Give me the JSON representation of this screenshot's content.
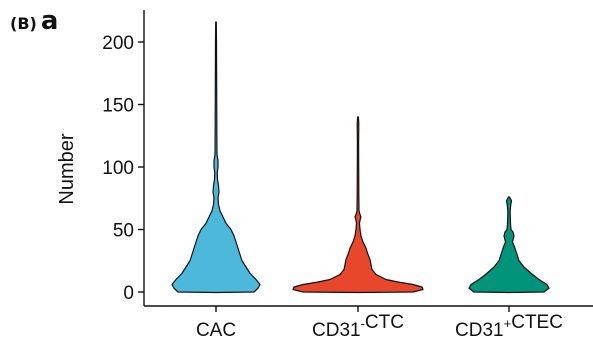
{
  "panel_label": {
    "paren": "(B)",
    "letter": "a"
  },
  "chart_data": {
    "type": "violin",
    "xlabel": "",
    "ylabel": "Number",
    "ylim": [
      -6,
      220
    ],
    "yticks": [
      0,
      50,
      100,
      150,
      200
    ],
    "grid": false,
    "legend": "none",
    "series": [
      {
        "category": "CAC",
        "label_parts": [
          {
            "text": "CAC",
            "sup": ""
          }
        ],
        "color": "#4CB9DC",
        "min": 0,
        "max": 216,
        "profile": [
          [
            0,
            38
          ],
          [
            3,
            42
          ],
          [
            6,
            44
          ],
          [
            10,
            40
          ],
          [
            15,
            34
          ],
          [
            20,
            30
          ],
          [
            25,
            26
          ],
          [
            30,
            24
          ],
          [
            35,
            22
          ],
          [
            40,
            20
          ],
          [
            45,
            18
          ],
          [
            50,
            15
          ],
          [
            55,
            10
          ],
          [
            60,
            7
          ],
          [
            65,
            4
          ],
          [
            70,
            2.5
          ],
          [
            75,
            2
          ],
          [
            80,
            3
          ],
          [
            85,
            2.5
          ],
          [
            90,
            1.5
          ],
          [
            95,
            1.2
          ],
          [
            100,
            2
          ],
          [
            105,
            2
          ],
          [
            110,
            1
          ],
          [
            120,
            0.9
          ],
          [
            140,
            0.8
          ],
          [
            160,
            0.7
          ],
          [
            180,
            0.6
          ],
          [
            200,
            0.5
          ],
          [
            216,
            0.3
          ]
        ]
      },
      {
        "category": "CD31-CTC",
        "label_parts": [
          {
            "text": "CD31",
            "sup": "-"
          },
          {
            "text": "CTC",
            "sup": ""
          }
        ],
        "color": "#E8472B",
        "min": 0,
        "max": 140,
        "profile": [
          [
            0,
            55
          ],
          [
            2,
            65
          ],
          [
            4,
            64
          ],
          [
            6,
            55
          ],
          [
            8,
            40
          ],
          [
            10,
            28
          ],
          [
            14,
            18
          ],
          [
            18,
            14
          ],
          [
            22,
            13
          ],
          [
            26,
            12
          ],
          [
            30,
            10
          ],
          [
            35,
            8
          ],
          [
            40,
            5
          ],
          [
            45,
            3
          ],
          [
            50,
            2
          ],
          [
            55,
            1.5
          ],
          [
            58,
            2.2
          ],
          [
            60,
            3
          ],
          [
            62,
            2
          ],
          [
            65,
            1
          ],
          [
            80,
            0.8
          ],
          [
            100,
            0.7
          ],
          [
            120,
            0.6
          ],
          [
            135,
            0.8
          ],
          [
            140,
            0.4
          ]
        ]
      },
      {
        "category": "CD31+CTEC",
        "label_parts": [
          {
            "text": "CD31",
            "sup": "+"
          },
          {
            "text": "CTEC",
            "sup": ""
          }
        ],
        "color": "#00957A",
        "min": 0,
        "max": 76,
        "profile": [
          [
            0,
            35
          ],
          [
            3,
            40
          ],
          [
            6,
            38
          ],
          [
            10,
            30
          ],
          [
            15,
            22
          ],
          [
            20,
            15
          ],
          [
            25,
            10
          ],
          [
            30,
            8
          ],
          [
            35,
            6
          ],
          [
            40,
            3.5
          ],
          [
            45,
            5
          ],
          [
            48,
            4
          ],
          [
            50,
            2
          ],
          [
            55,
            1.5
          ],
          [
            60,
            1.3
          ],
          [
            65,
            1.2
          ],
          [
            70,
            1.8
          ],
          [
            73,
            2.5
          ],
          [
            76,
            0.6
          ]
        ]
      }
    ]
  }
}
